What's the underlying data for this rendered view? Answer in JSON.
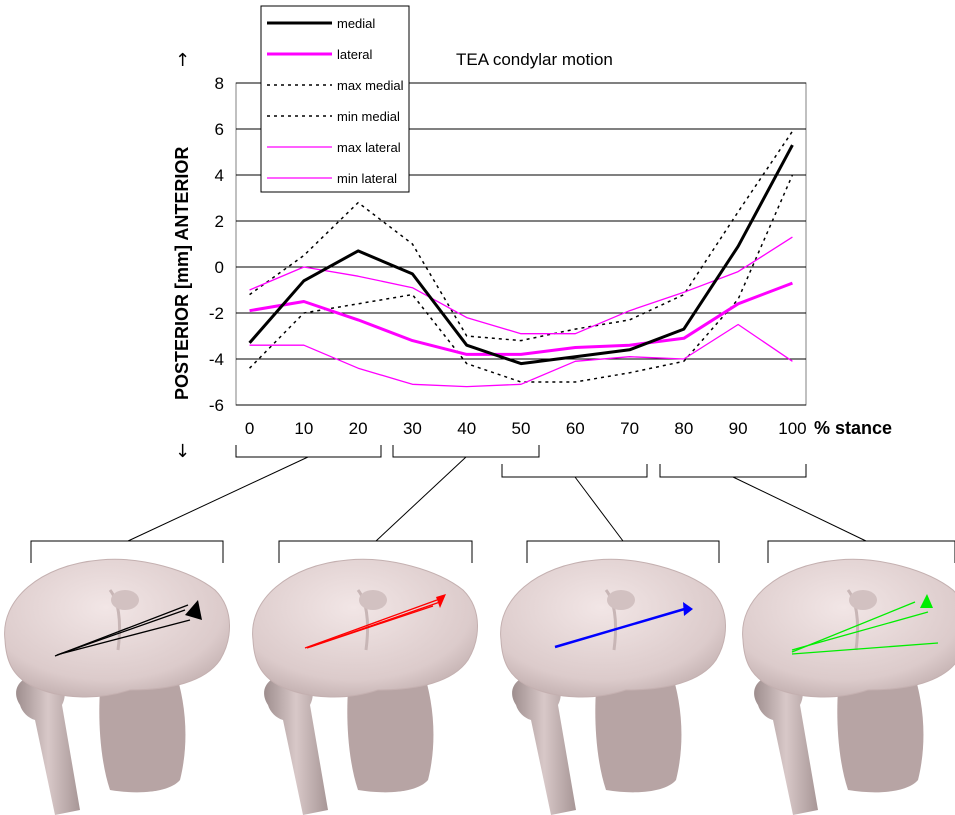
{
  "chart_data": {
    "type": "line",
    "title": "TEA condylar motion",
    "ylabel": "POSTERIOR [mm] ANTERIOR",
    "ylabel_arrow_up": "↑",
    "ylabel_arrow_down": "↓",
    "xlabel": "% stance",
    "x_ticks": [
      "0",
      "10",
      "20",
      "30",
      "40",
      "50",
      "60",
      "70",
      "80",
      "90",
      "100"
    ],
    "y_ticks": [
      "-6",
      "-4",
      "-2",
      "0",
      "2",
      "4",
      "6",
      "8"
    ],
    "ylim": [
      -6,
      8
    ],
    "grid": true,
    "legend_position": "top-left",
    "x": [
      0,
      10,
      20,
      30,
      40,
      50,
      60,
      70,
      80,
      90,
      100
    ],
    "series": [
      {
        "name": "medial",
        "color": "#000000",
        "style": "solid-thick",
        "values": [
          -3.3,
          -0.6,
          0.7,
          -0.3,
          -3.4,
          -4.2,
          -3.9,
          -3.6,
          -2.7,
          0.9,
          5.3
        ]
      },
      {
        "name": "lateral",
        "color": "#ff00ff",
        "style": "solid-thick",
        "values": [
          -1.9,
          -1.5,
          -2.3,
          -3.2,
          -3.8,
          -3.8,
          -3.5,
          -3.4,
          -3.1,
          -1.6,
          -0.7
        ]
      },
      {
        "name": "max medial",
        "color": "#000000",
        "style": "dotted",
        "values": [
          -1.2,
          0.5,
          2.8,
          1.0,
          -3.0,
          -3.2,
          -2.7,
          -2.3,
          -1.2,
          2.4,
          5.9
        ]
      },
      {
        "name": "min medial",
        "color": "#000000",
        "style": "dotted",
        "values": [
          -4.4,
          -2.0,
          -1.6,
          -1.2,
          -4.2,
          -5.0,
          -5.0,
          -4.6,
          -4.1,
          -1.4,
          4.0
        ]
      },
      {
        "name": "max lateral",
        "color": "#ff00ff",
        "style": "solid-thin",
        "values": [
          -1.0,
          0.0,
          -0.4,
          -0.9,
          -2.2,
          -2.9,
          -2.9,
          -1.9,
          -1.1,
          -0.2,
          1.3
        ]
      },
      {
        "name": "min lateral",
        "color": "#ff00ff",
        "style": "solid-thin",
        "values": [
          -3.4,
          -3.4,
          -4.4,
          -5.1,
          -5.2,
          -5.1,
          -4.1,
          -3.9,
          -4.0,
          -2.5,
          -4.1
        ]
      }
    ]
  },
  "panels": [
    {
      "name": "stance-0-25",
      "arrow_color": "#000000"
    },
    {
      "name": "stance-25-55",
      "arrow_color": "#ff0000"
    },
    {
      "name": "stance-50-75",
      "arrow_color": "#0000ff"
    },
    {
      "name": "stance-75-100",
      "arrow_color": "#00ee00"
    }
  ],
  "colors": {
    "grid": "#000000",
    "bone": "#e2d3d3",
    "bone_shadow": "#a99999"
  }
}
